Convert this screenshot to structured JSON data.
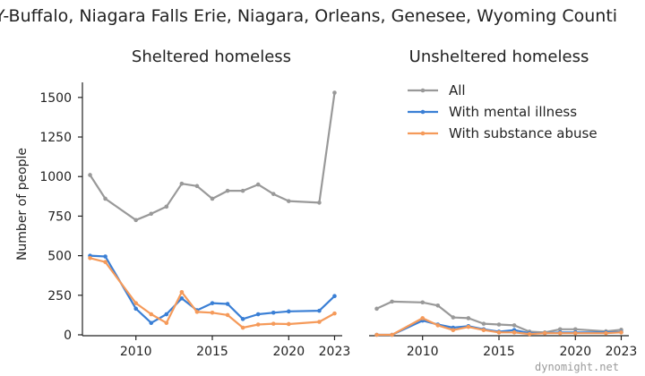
{
  "title": "Y-Buffalo, Niagara Falls Erie, Niagara, Orleans, Genesee, Wyoming Counti",
  "watermark": "dynomight.net",
  "chart_data": {
    "type": "line",
    "ylabel": "Number of people",
    "ylim": [
      0,
      1550
    ],
    "yticks": [
      0,
      250,
      500,
      750,
      1000,
      1250,
      1500
    ],
    "xlim": [
      2006.5,
      2023.5
    ],
    "xticks": [
      2010,
      2015,
      2020,
      2023
    ],
    "grid": false,
    "legend_position": "top-right",
    "colors": {
      "All": "#999999",
      "With mental illness": "#3a7fd5",
      "With substance abuse": "#f59a5a"
    },
    "legend": [
      "All",
      "With mental illness",
      "With substance abuse"
    ],
    "panels": [
      {
        "title": "Sheltered homeless",
        "series": [
          {
            "name": "All",
            "x": [
              2007,
              2008,
              2010,
              2011,
              2012,
              2013,
              2014,
              2015,
              2016,
              2017,
              2018,
              2019,
              2020,
              2022,
              2023
            ],
            "values": [
              1010,
              860,
              725,
              765,
              810,
              955,
              940,
              860,
              910,
              910,
              950,
              890,
              845,
              835,
              1530
            ]
          },
          {
            "name": "With mental illness",
            "x": [
              2007,
              2008,
              2010,
              2011,
              2012,
              2013,
              2014,
              2015,
              2016,
              2017,
              2018,
              2019,
              2020,
              2022,
              2023
            ],
            "values": [
              500,
              495,
              165,
              75,
              130,
              230,
              155,
              200,
              195,
              100,
              130,
              140,
              148,
              152,
              245
            ]
          },
          {
            "name": "With substance abuse",
            "x": [
              2007,
              2008,
              2010,
              2011,
              2012,
              2013,
              2014,
              2015,
              2016,
              2017,
              2018,
              2019,
              2020,
              2022,
              2023
            ],
            "values": [
              485,
              460,
              200,
              130,
              75,
              270,
              145,
              140,
              125,
              45,
              65,
              70,
              68,
              82,
              135
            ]
          }
        ]
      },
      {
        "title": "Unsheltered homeless",
        "series": [
          {
            "name": "All",
            "x": [
              2007,
              2008,
              2010,
              2011,
              2012,
              2013,
              2014,
              2015,
              2016,
              2017,
              2018,
              2019,
              2020,
              2022,
              2023
            ],
            "values": [
              165,
              210,
              205,
              185,
              110,
              105,
              70,
              65,
              60,
              20,
              15,
              35,
              35,
              22,
              32
            ]
          },
          {
            "name": "With mental illness",
            "x": [
              2007,
              2008,
              2010,
              2011,
              2012,
              2013,
              2014,
              2015,
              2016,
              2017,
              2018,
              2019,
              2020,
              2022,
              2023
            ],
            "values": [
              0,
              0,
              90,
              65,
              45,
              55,
              35,
              20,
              30,
              10,
              10,
              15,
              15,
              15,
              18
            ]
          },
          {
            "name": "With substance abuse",
            "x": [
              2007,
              2008,
              2010,
              2011,
              2012,
              2013,
              2014,
              2015,
              2016,
              2017,
              2018,
              2019,
              2020,
              2022,
              2023
            ],
            "values": [
              0,
              0,
              105,
              60,
              30,
              50,
              30,
              15,
              15,
              5,
              10,
              10,
              10,
              10,
              15
            ]
          }
        ]
      }
    ]
  }
}
